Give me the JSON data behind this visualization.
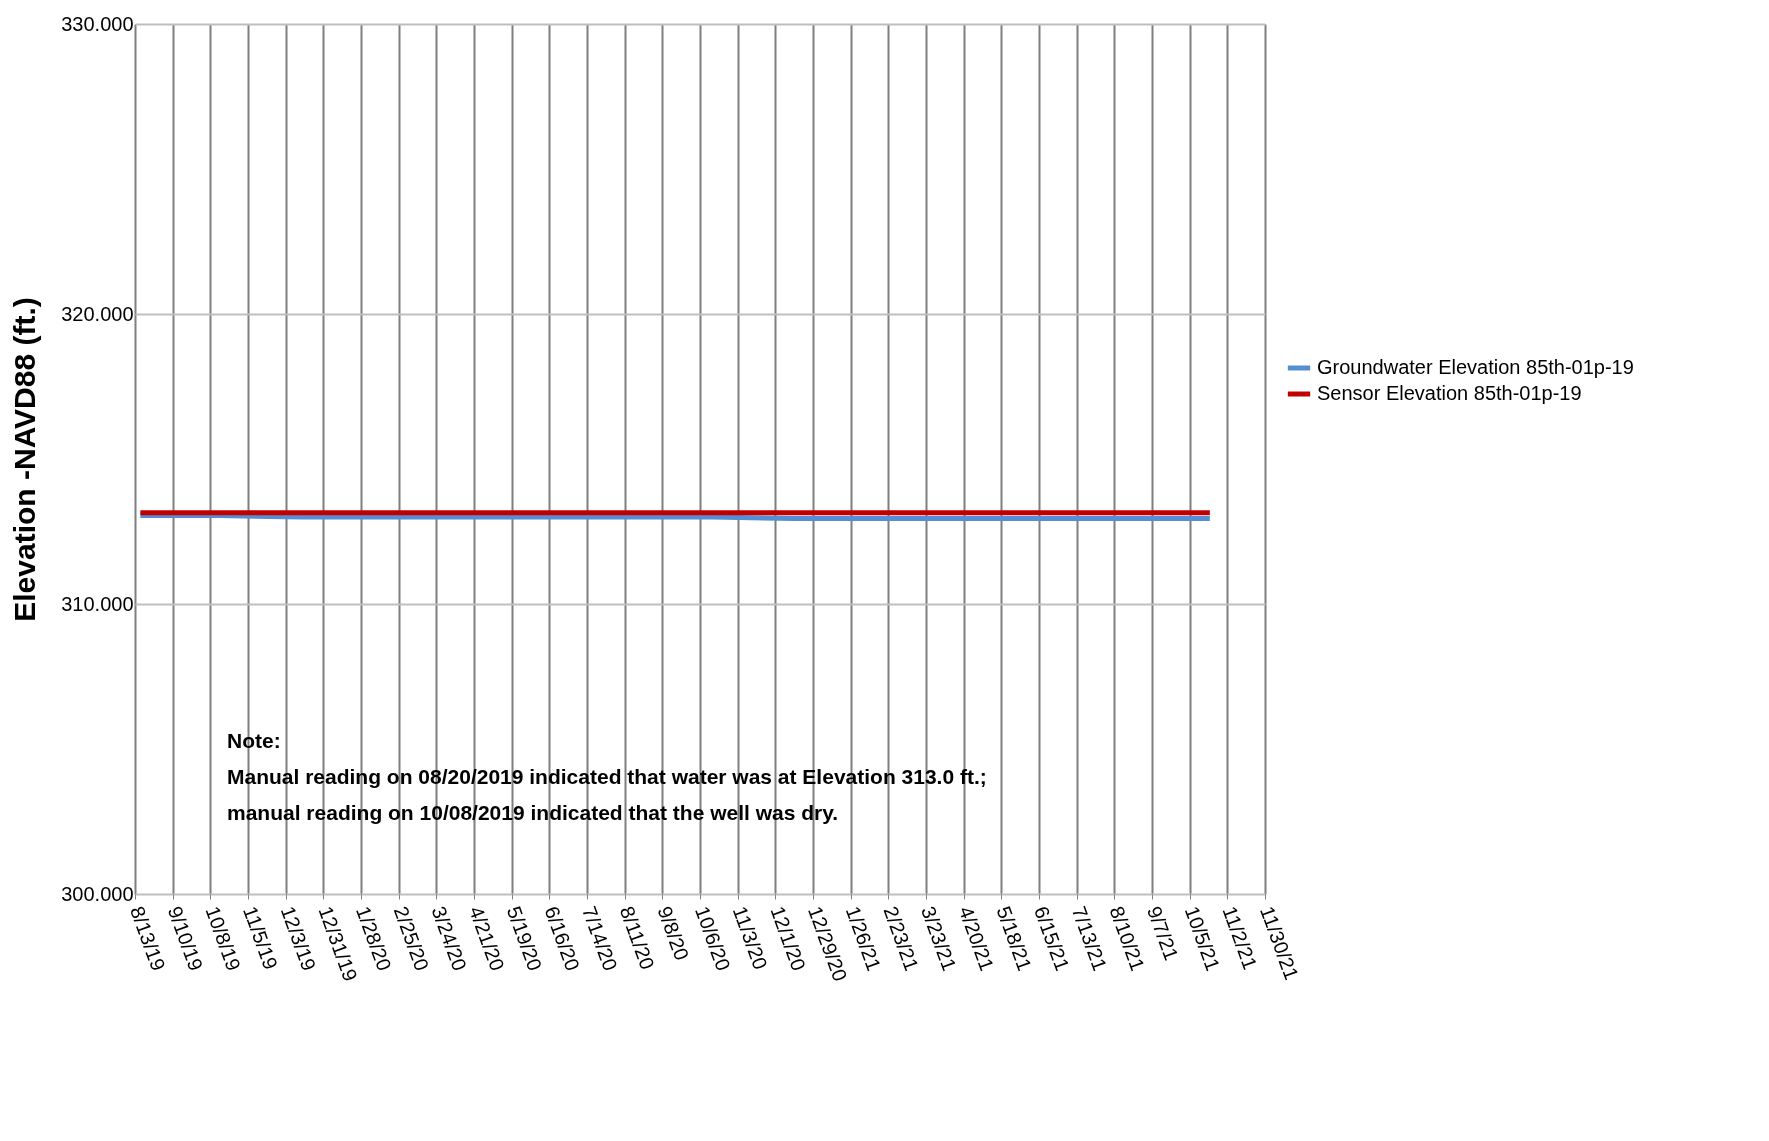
{
  "chart_data": {
    "type": "line",
    "ylabel": "Elevation -NAVD88 (ft.)",
    "x": [
      "2019-08-17",
      "2019-10-15",
      "2019-12-15",
      "2020-02-15",
      "2020-04-15",
      "2020-06-15",
      "2020-08-15",
      "2020-10-15",
      "2020-12-15",
      "2021-02-15",
      "2021-04-15",
      "2021-06-15",
      "2021-08-15",
      "2021-10-20"
    ],
    "series": [
      {
        "name": "Groundwater Elevation 85th-01p-19",
        "color": "#558ed5",
        "values": [
          313.05,
          313.05,
          313.0,
          313.0,
          313.0,
          313.0,
          313.0,
          313.0,
          312.95,
          312.95,
          312.95,
          312.95,
          312.95,
          312.95
        ]
      },
      {
        "name": "Sensor Elevation 85th-01p-19",
        "color": "#c00000",
        "values": [
          313.15,
          313.15,
          313.15,
          313.15,
          313.15,
          313.15,
          313.15,
          313.15,
          313.15,
          313.15,
          313.15,
          313.15,
          313.15,
          313.15
        ]
      }
    ],
    "xlim": [
      "2019-08-13",
      "2021-11-30"
    ],
    "xticks": [
      {
        "value": "2019-08-13",
        "label": "8/13/19"
      },
      {
        "value": "2019-09-10",
        "label": "9/10/19"
      },
      {
        "value": "2019-10-08",
        "label": "10/8/19"
      },
      {
        "value": "2019-11-05",
        "label": "11/5/19"
      },
      {
        "value": "2019-12-03",
        "label": "12/3/19"
      },
      {
        "value": "2019-12-31",
        "label": "12/31/19"
      },
      {
        "value": "2020-01-28",
        "label": "1/28/20"
      },
      {
        "value": "2020-02-25",
        "label": "2/25/20"
      },
      {
        "value": "2020-03-24",
        "label": "3/24/20"
      },
      {
        "value": "2020-04-21",
        "label": "4/21/20"
      },
      {
        "value": "2020-05-19",
        "label": "5/19/20"
      },
      {
        "value": "2020-06-16",
        "label": "6/16/20"
      },
      {
        "value": "2020-07-14",
        "label": "7/14/20"
      },
      {
        "value": "2020-08-11",
        "label": "8/11/20"
      },
      {
        "value": "2020-09-08",
        "label": "9/8/20"
      },
      {
        "value": "2020-10-06",
        "label": "10/6/20"
      },
      {
        "value": "2020-11-03",
        "label": "11/3/20"
      },
      {
        "value": "2020-12-01",
        "label": "12/1/20"
      },
      {
        "value": "2020-12-29",
        "label": "12/29/20"
      },
      {
        "value": "2021-01-26",
        "label": "1/26/21"
      },
      {
        "value": "2021-02-23",
        "label": "2/23/21"
      },
      {
        "value": "2021-03-23",
        "label": "3/23/21"
      },
      {
        "value": "2021-04-20",
        "label": "4/20/21"
      },
      {
        "value": "2021-05-18",
        "label": "5/18/21"
      },
      {
        "value": "2021-06-15",
        "label": "6/15/21"
      },
      {
        "value": "2021-07-13",
        "label": "7/13/21"
      },
      {
        "value": "2021-08-10",
        "label": "8/10/21"
      },
      {
        "value": "2021-09-07",
        "label": "9/7/21"
      },
      {
        "value": "2021-10-05",
        "label": "10/5/21"
      },
      {
        "value": "2021-11-02",
        "label": "11/2/21"
      },
      {
        "value": "2021-11-30",
        "label": "11/30/21"
      }
    ],
    "ylim": [
      300,
      330
    ],
    "yticks": [
      {
        "value": 300,
        "label": "300.000"
      },
      {
        "value": 310,
        "label": "310.000"
      },
      {
        "value": 320,
        "label": "320.000"
      },
      {
        "value": 330,
        "label": "330.000"
      }
    ],
    "grid": true,
    "legend": "right",
    "marker": "none",
    "line_style": "solid",
    "annotations": [
      "Note:",
      "Manual reading on 08/20/2019 indicated that water was at Elevation 313.0 ft.;",
      "manual reading on 10/08/2019 indicated that the well was dry."
    ]
  }
}
